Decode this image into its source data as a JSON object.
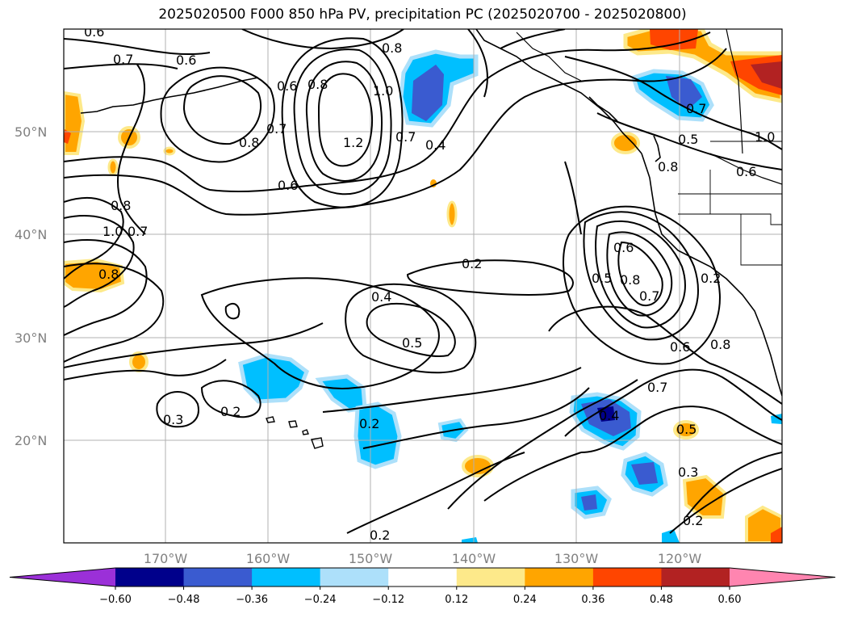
{
  "title": "2025020500 F000 850 hPa PV, precipitation PC (2025020700 - 2025020800)",
  "lat_labels": [
    "50°N",
    "40°N",
    "30°N",
    "20°N"
  ],
  "lon_labels": [
    "170°W",
    "160°W",
    "150°W",
    "140°W",
    "130°W",
    "120°W"
  ],
  "colorbar": {
    "ticks": [
      "−0.60",
      "−0.48",
      "−0.36",
      "−0.24",
      "−0.12",
      "0.12",
      "0.24",
      "0.36",
      "0.48",
      "0.60"
    ],
    "colors": [
      "#9b30d8",
      "#00008b",
      "#3a5bd0",
      "#00bfff",
      "#ade0fa",
      "#ffffff",
      "#fde98a",
      "#ffa500",
      "#ff4500",
      "#b22222",
      "#ff85b0"
    ]
  },
  "contour_labels": [
    "0.6",
    "0.7",
    "0.6",
    "0.8",
    "0.6",
    "0.8",
    "0.7",
    "1.0",
    "1.2",
    "0.8",
    "0.7",
    "0.4",
    "0.6",
    "1.0",
    "0.8",
    "0.7",
    "0.8",
    "0.2",
    "0.4",
    "0.5",
    "0.5",
    "0.6",
    "0.8",
    "0.7",
    "0.2",
    "0.6",
    "0.8",
    "0.7",
    "0.4",
    "0.5",
    "0.3",
    "0.3",
    "0.2",
    "0.2",
    "0.2",
    "0.2",
    "0.7",
    "0.5",
    "1.0",
    "0.6",
    "0.8"
  ]
}
